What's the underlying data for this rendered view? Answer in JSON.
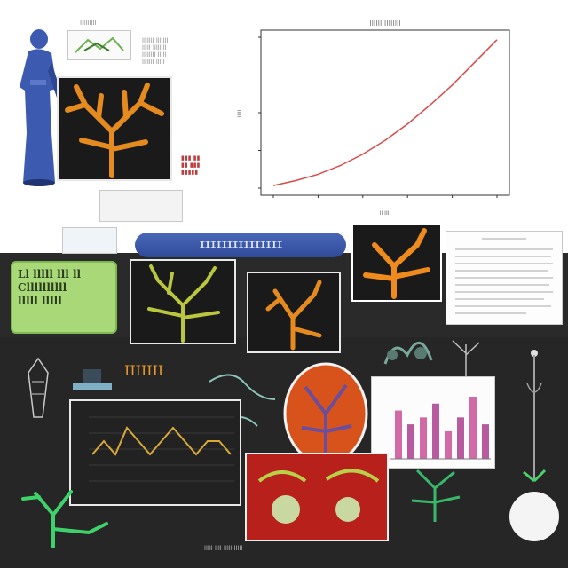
{
  "header": {
    "top_label": "IIIIIIIII",
    "scribble_lines": [
      "lllllll lllllll",
      "lllll llllllll",
      "llllllll lllll",
      "lllllll lllll"
    ]
  },
  "main_chart": {
    "title": "IIIIII IIIIIIII",
    "xlabel": "II IIII",
    "ylabel": "IIIII"
  },
  "green_card": {
    "lines": [
      "Ll lllll lll ll",
      "Cllllllllll",
      "lllll lllll"
    ]
  },
  "banner": {
    "text": "IIIIIIIIIIIIIII"
  },
  "middle_label": {
    "text": "IIIIIII"
  },
  "footer": {
    "caption": "lllll llll lllllllllll"
  },
  "colors": {
    "accent_orange": "#e58a1f",
    "curve_red": "#d94a48",
    "board_dark": "#262626",
    "green": "#a8d878",
    "blue": "#3c5bb0"
  },
  "chart_data": [
    {
      "type": "line",
      "x": [
        0,
        1,
        2,
        3,
        4,
        5,
        6,
        7,
        8,
        9,
        10
      ],
      "series": [
        {
          "values": [
            2,
            6,
            11,
            18,
            27,
            38,
            51,
            66,
            82,
            100,
            118
          ]
        }
      ],
      "ylim": [
        0,
        120
      ],
      "xlim": [
        0,
        10
      ],
      "grid": false
    },
    {
      "type": "line",
      "x": [
        0,
        1,
        2,
        3,
        4,
        5,
        6,
        7,
        8,
        9,
        10,
        11,
        12
      ],
      "series": [
        {
          "values": [
            5,
            6,
            5,
            7,
            6,
            5,
            6,
            7,
            6,
            5,
            6,
            6,
            5
          ]
        }
      ],
      "grid": true
    },
    {
      "type": "bar",
      "categories": [
        "1",
        "2",
        "3",
        "4",
        "5",
        "6",
        "7",
        "8"
      ],
      "values": [
        7,
        5,
        6,
        8,
        4,
        6,
        9,
        5
      ]
    }
  ]
}
